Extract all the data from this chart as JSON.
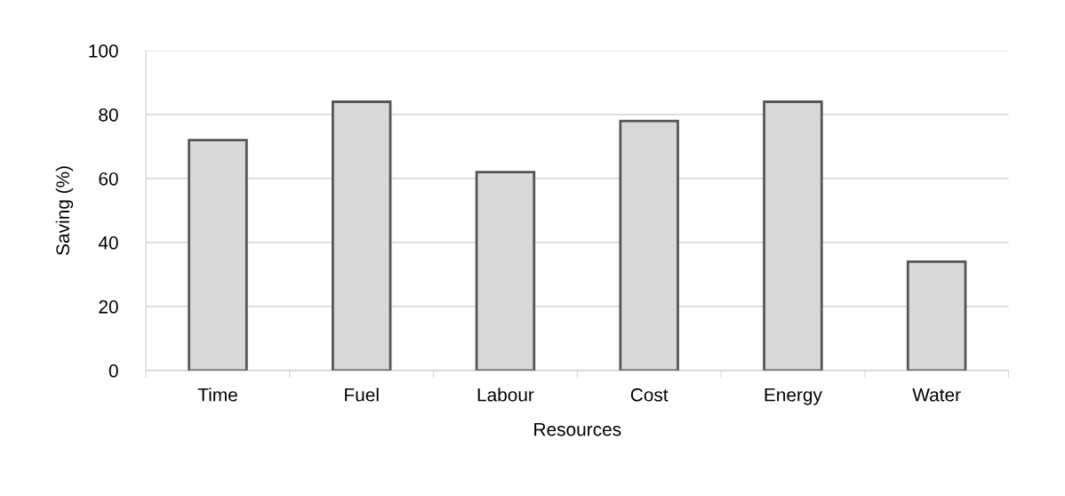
{
  "chart_data": {
    "type": "bar",
    "xlabel": "Resources",
    "ylabel": "Saving (%)",
    "categories": [
      "Time",
      "Fuel",
      "Labour",
      "Cost",
      "Energy",
      "Water"
    ],
    "values": [
      72,
      84,
      62,
      78,
      84,
      34
    ],
    "color": "#d9d9d9",
    "ylim": [
      0,
      100
    ],
    "yticks": [
      0,
      20,
      40,
      60,
      80,
      100
    ],
    "grid": "y"
  }
}
